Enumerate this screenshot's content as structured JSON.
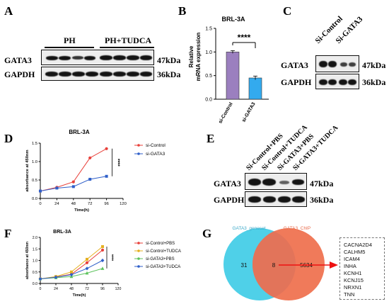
{
  "panels": {
    "A": {
      "letter": "A",
      "groups": [
        "PH",
        "PH+TUDCA"
      ],
      "rows": [
        {
          "label": "GATA3",
          "kda": "47kDa"
        },
        {
          "label": "GAPDH",
          "kda": "36kDa"
        }
      ]
    },
    "B": {
      "letter": "B",
      "title": "BRL-3A",
      "ylabel_line1": "Relative",
      "ylabel_line2": "mRNA expression",
      "significance": "****",
      "colors": {
        "si_control": "#9b7fbf",
        "si_gata3": "#33aaee"
      }
    },
    "C": {
      "letter": "C",
      "lanes": [
        "Si-Control",
        "Si-GATA3"
      ],
      "rows": [
        {
          "label": "GATA3",
          "kda": "47kDa"
        },
        {
          "label": "GAPDH",
          "kda": "36kDa"
        }
      ]
    },
    "D": {
      "letter": "D",
      "title": "BRL-3A",
      "significance": "****",
      "colors": {
        "si_control": "#e8403a",
        "si_gata3": "#2f5fc9"
      }
    },
    "E": {
      "letter": "E",
      "lanes": [
        "Si-Control+PBS",
        "Si-Control+TUDCA",
        "Si-GATA3+PBS",
        "Si-GATA3+TUDCA"
      ],
      "rows": [
        {
          "label": "GATA3",
          "kda": "47kDa"
        },
        {
          "label": "GAPDH",
          "kda": "36kDa"
        }
      ]
    },
    "F": {
      "letter": "F",
      "title": "BRL-3A",
      "significance": "****",
      "colors": {
        "control_pbs": "#e8403a",
        "control_tudca": "#e5b020",
        "gata3_pbs": "#5cc25c",
        "gata3_tudca": "#2f5fc9"
      }
    },
    "G": {
      "letter": "G",
      "left_set": "GATA3_geneset",
      "right_set": "GATA3_ChIP",
      "left_only": "31",
      "overlap": "8",
      "right_only": "5634",
      "colors": {
        "left": "#4fd0e8",
        "right": "#f07a5a",
        "overlap": "#e2745a",
        "arrow": "#ee1111"
      },
      "genes": [
        "CACNA2D4",
        "CALHM5",
        "ICAM4",
        "INHA",
        "KCNH1",
        "KCNJ15",
        "NRXN1",
        "TNN"
      ]
    }
  },
  "chart_data": [
    {
      "type": "bar",
      "panel": "B",
      "title": "BRL-3A",
      "categories": [
        "si-Control",
        "si-GATA3"
      ],
      "values": [
        1.0,
        0.45
      ],
      "errors": [
        0.03,
        0.04
      ],
      "ylabel": "Relative mRNA expression",
      "ylim": [
        0,
        1.5
      ],
      "yticks": [
        "0.0",
        "0.5",
        "1.0",
        "1.5"
      ]
    },
    {
      "type": "line",
      "panel": "D",
      "title": "BRL-3A",
      "xlabel": "Time(h)",
      "ylabel": "absorbance at 450nm",
      "x": [
        0,
        24,
        48,
        72,
        96
      ],
      "xticks": [
        "0",
        "24",
        "48",
        "72",
        "96",
        "120"
      ],
      "yticks": [
        "0.0",
        "0.5",
        "1.0",
        "1.5"
      ],
      "xlim": [
        0,
        120
      ],
      "ylim": [
        0,
        1.5
      ],
      "legend_position": "top-right",
      "series": [
        {
          "name": "si-Control",
          "values": [
            0.2,
            0.3,
            0.45,
            1.1,
            1.35
          ]
        },
        {
          "name": "si-GATA3",
          "values": [
            0.2,
            0.28,
            0.32,
            0.52,
            0.6
          ]
        }
      ]
    },
    {
      "type": "line",
      "panel": "F",
      "title": "BRL-3A",
      "xlabel": "Time(h)",
      "ylabel": "absorbance at 450nm",
      "x": [
        0,
        24,
        48,
        72,
        96
      ],
      "xticks": [
        "0",
        "24",
        "48",
        "72",
        "96",
        "120"
      ],
      "yticks": [
        "0.0",
        "0.5",
        "1.0",
        "1.5",
        "2.0"
      ],
      "xlim": [
        0,
        120
      ],
      "ylim": [
        0,
        2.0
      ],
      "legend_position": "right",
      "series": [
        {
          "name": "si-Control+PBS",
          "values": [
            0.2,
            0.28,
            0.4,
            0.9,
            1.45
          ]
        },
        {
          "name": "si-Control+TUDCA",
          "values": [
            0.2,
            0.3,
            0.5,
            1.05,
            1.6
          ]
        },
        {
          "name": "si-GATA3+PBS",
          "values": [
            0.2,
            0.25,
            0.3,
            0.45,
            0.65
          ]
        },
        {
          "name": "si-GATA3+TUDCA",
          "values": [
            0.2,
            0.27,
            0.38,
            0.65,
            1.0
          ]
        }
      ]
    }
  ]
}
